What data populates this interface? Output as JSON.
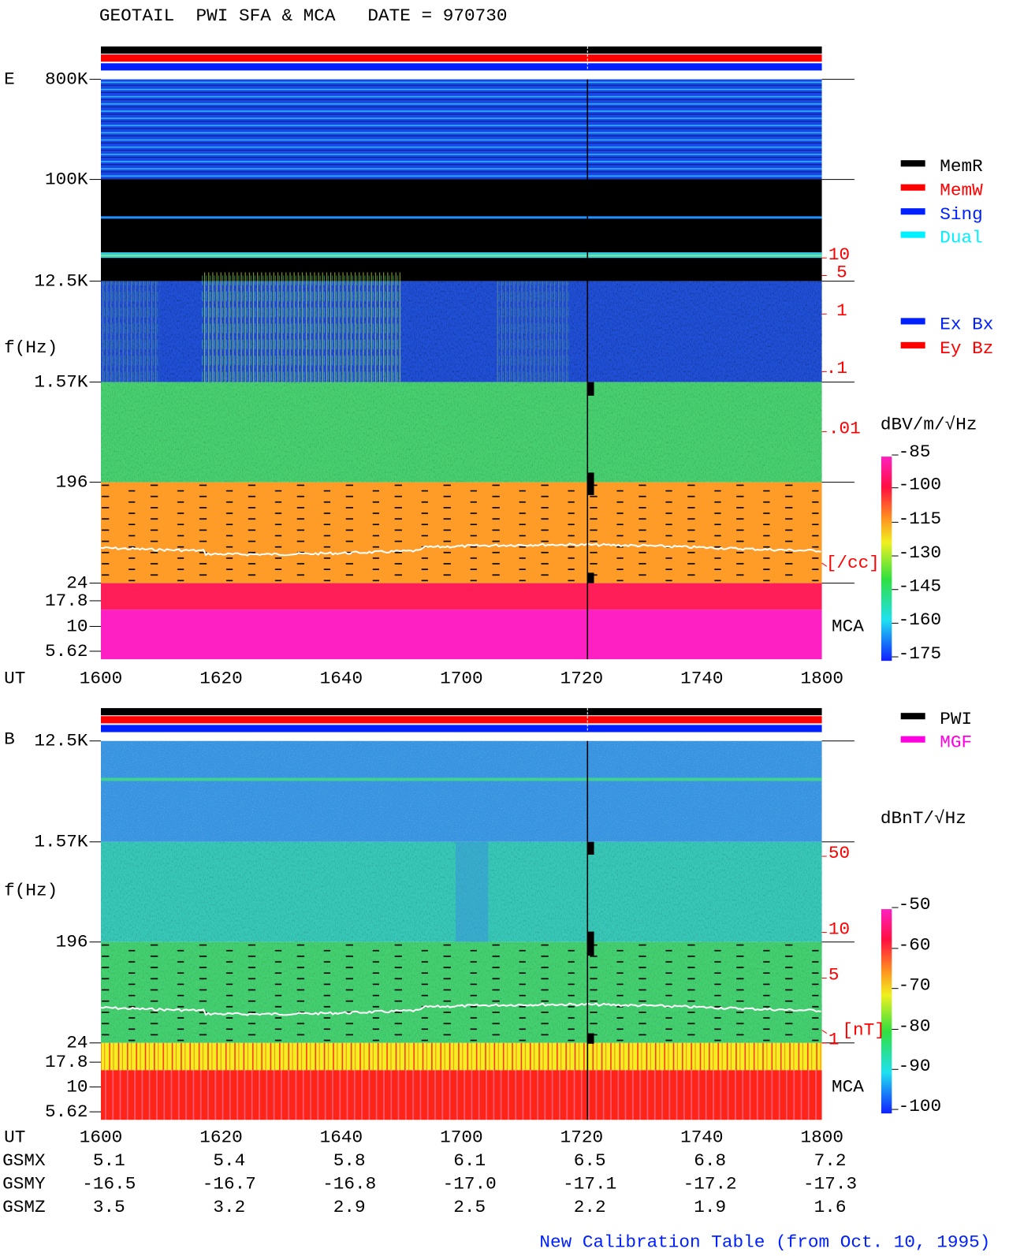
{
  "header": {
    "title": "GEOTAIL  PWI SFA & MCA   DATE = 970730"
  },
  "panels": [
    {
      "label": "E",
      "axis_label": "f(Hz)",
      "freq_labels": [
        "800K",
        "100K",
        "12.5K",
        "1.57K",
        "196",
        "24",
        "17.8",
        "10",
        "5.62"
      ],
      "density_labels": [
        "10",
        "5",
        "1",
        ".1",
        ".01",
        "[/cc]"
      ],
      "mca": "MCA",
      "time_label": "UT",
      "times": [
        "1600",
        "1620",
        "1640",
        "1700",
        "1720",
        "1740",
        "1800"
      ],
      "legend": [
        {
          "name": "MemR",
          "color": "#000000"
        },
        {
          "name": "MemW",
          "color": "#ff0000"
        },
        {
          "name": "Sing",
          "color": "#0020ff"
        },
        {
          "name": "Dual",
          "color": "#00f0ff"
        }
      ],
      "legend2": [
        {
          "name": "Ex Bx",
          "color": "#0020ff"
        },
        {
          "name": "Ey Bz",
          "color": "#ff0000"
        }
      ],
      "colorbar": {
        "unit": "dBV/m/√Hz",
        "ticks": [
          "-85",
          "-100",
          "-115",
          "-130",
          "-145",
          "-160",
          "-175"
        ]
      }
    },
    {
      "label": "B",
      "axis_label": "f(Hz)",
      "freq_labels": [
        "12.5K",
        "1.57K",
        "196",
        "24",
        "17.8",
        "10",
        "5.62"
      ],
      "density_labels": [
        "50",
        "10",
        "5",
        "1",
        "[nT]"
      ],
      "mca": "MCA",
      "legend": [
        {
          "name": "PWI",
          "color": "#000000"
        },
        {
          "name": "MGF",
          "color": "#ff00e0"
        }
      ],
      "colorbar": {
        "unit": "dBnT/√Hz",
        "ticks": [
          "-50",
          "-60",
          "-70",
          "-80",
          "-90",
          "-100"
        ]
      }
    }
  ],
  "orbit": {
    "time_label": "UT",
    "times": [
      "1600",
      "1620",
      "1640",
      "1700",
      "1720",
      "1740",
      "1800"
    ],
    "rows": [
      {
        "name": "GSMX",
        "values": [
          "5.1",
          "5.4",
          "5.8",
          "6.1",
          "6.5",
          "6.8",
          "7.2"
        ]
      },
      {
        "name": "GSMY",
        "values": [
          "-16.5",
          "-16.7",
          "-16.8",
          "-17.0",
          "-17.1",
          "-17.2",
          "-17.3"
        ]
      },
      {
        "name": "GSMZ",
        "values": [
          "3.5",
          "3.2",
          "2.9",
          "2.5",
          "2.2",
          "1.9",
          "1.6"
        ]
      }
    ]
  },
  "footer": "New Calibration Table (from Oct. 10, 1995)"
}
